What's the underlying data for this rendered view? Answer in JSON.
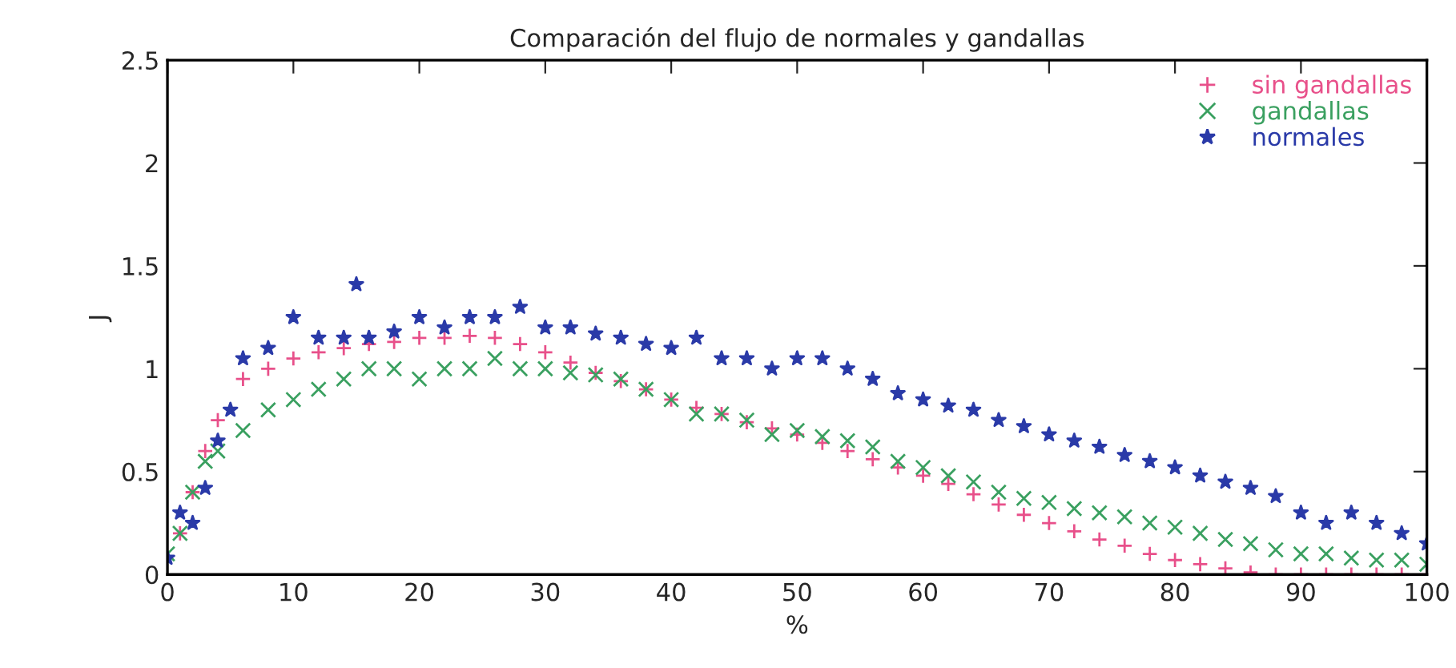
{
  "chart_data": {
    "type": "scatter",
    "title": "Comparación del flujo de normales y gandallas",
    "xlabel": "%",
    "ylabel": "J",
    "xlim": [
      0,
      100
    ],
    "ylim": [
      0,
      2.5
    ],
    "xticks": [
      0,
      10,
      20,
      30,
      40,
      50,
      60,
      70,
      80,
      90,
      100
    ],
    "yticks": [
      0,
      0.5,
      1,
      1.5,
      2,
      2.5
    ],
    "grid": false,
    "legend": "top right",
    "series": [
      {
        "name": "sin gandallas",
        "color": "#e8508a",
        "marker": "cross",
        "x": [
          1,
          2,
          3,
          4,
          6,
          8,
          10,
          12,
          14,
          16,
          18,
          20,
          22,
          24,
          26,
          28,
          30,
          32,
          34,
          36,
          38,
          40,
          42,
          44,
          46,
          48,
          50,
          52,
          54,
          56,
          58,
          60,
          62,
          64,
          66,
          68,
          70,
          72,
          74,
          76,
          78,
          80,
          82,
          84,
          86,
          88,
          90,
          92,
          94,
          96,
          98,
          100
        ],
        "values": [
          0.2,
          0.4,
          0.6,
          0.75,
          0.95,
          1.0,
          1.05,
          1.08,
          1.1,
          1.12,
          1.13,
          1.15,
          1.15,
          1.16,
          1.15,
          1.12,
          1.08,
          1.03,
          0.98,
          0.94,
          0.9,
          0.85,
          0.81,
          0.78,
          0.74,
          0.71,
          0.68,
          0.64,
          0.6,
          0.56,
          0.52,
          0.48,
          0.44,
          0.39,
          0.34,
          0.29,
          0.25,
          0.21,
          0.17,
          0.14,
          0.1,
          0.07,
          0.05,
          0.03,
          0.01,
          0,
          0,
          0,
          0,
          0,
          0,
          0
        ]
      },
      {
        "name": "gandallas",
        "color": "#3aa060",
        "marker": "x",
        "x": [
          0,
          1,
          2,
          3,
          4,
          6,
          8,
          10,
          12,
          14,
          16,
          18,
          20,
          22,
          24,
          26,
          28,
          30,
          32,
          34,
          36,
          38,
          40,
          42,
          44,
          46,
          48,
          50,
          52,
          54,
          56,
          58,
          60,
          62,
          64,
          66,
          68,
          70,
          72,
          74,
          76,
          78,
          80,
          82,
          84,
          86,
          88,
          90,
          92,
          94,
          96,
          98,
          100
        ],
        "values": [
          0.1,
          0.2,
          0.4,
          0.55,
          0.6,
          0.7,
          0.8,
          0.85,
          0.9,
          0.95,
          1.0,
          1.0,
          0.95,
          1.0,
          1.0,
          1.05,
          1.0,
          1.0,
          0.98,
          0.97,
          0.95,
          0.9,
          0.85,
          0.78,
          0.78,
          0.75,
          0.68,
          0.7,
          0.67,
          0.65,
          0.62,
          0.55,
          0.52,
          0.48,
          0.45,
          0.4,
          0.37,
          0.35,
          0.32,
          0.3,
          0.28,
          0.25,
          0.23,
          0.2,
          0.17,
          0.15,
          0.12,
          0.1,
          0.1,
          0.08,
          0.07,
          0.07,
          0.05
        ]
      },
      {
        "name": "normales",
        "color": "#2a3aa8",
        "marker": "star",
        "x": [
          0,
          1,
          2,
          3,
          4,
          5,
          6,
          8,
          10,
          12,
          14,
          15,
          16,
          18,
          20,
          22,
          24,
          26,
          28,
          30,
          32,
          34,
          36,
          38,
          40,
          42,
          44,
          46,
          48,
          50,
          52,
          54,
          56,
          58,
          60,
          62,
          64,
          66,
          68,
          70,
          72,
          74,
          76,
          78,
          80,
          82,
          84,
          86,
          88,
          90,
          92,
          94,
          96,
          98,
          100
        ],
        "values": [
          0.08,
          0.3,
          0.25,
          0.42,
          0.65,
          0.8,
          1.05,
          1.1,
          1.25,
          1.15,
          1.15,
          1.41,
          1.15,
          1.18,
          1.25,
          1.2,
          1.25,
          1.25,
          1.3,
          1.2,
          1.2,
          1.17,
          1.15,
          1.12,
          1.1,
          1.15,
          1.05,
          1.05,
          1.0,
          1.05,
          1.05,
          1.0,
          0.95,
          0.88,
          0.85,
          0.82,
          0.8,
          0.75,
          0.72,
          0.68,
          0.65,
          0.62,
          0.58,
          0.55,
          0.52,
          0.48,
          0.45,
          0.42,
          0.38,
          0.3,
          0.25,
          0.3,
          0.25,
          0.2,
          0.15
        ]
      }
    ]
  }
}
